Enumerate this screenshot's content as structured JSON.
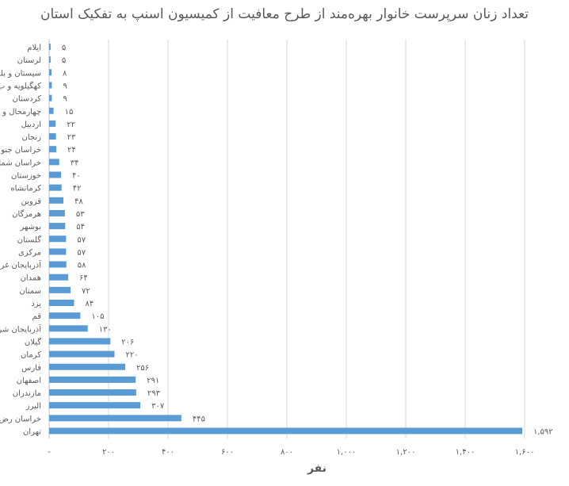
{
  "chart_data": {
    "type": "bar",
    "orientation": "horizontal",
    "title": "تعداد زنان سرپرست خانوار بهره‌مند از طرح معافیت از کمیسیون اسنپ به تفکیک استان",
    "xlabel": "نفر",
    "ylabel": "",
    "xlim": [
      0,
      1600
    ],
    "x_ticks": [
      0,
      200,
      400,
      600,
      800,
      1000,
      1200,
      1400,
      1600
    ],
    "x_tick_labels": [
      "-",
      "۲۰۰",
      "۴۰۰",
      "۶۰۰",
      "۸۰۰",
      "۱,۰۰۰",
      "۱,۲۰۰",
      "۱,۴۰۰",
      "۱,۶۰۰"
    ],
    "grid": "vertical",
    "bar_color": "#5B9BD5",
    "categories": [
      "ایلام",
      "لرستان",
      "سیستان و بلو",
      "کهگیلویه و ب",
      "کردستان",
      "چهارمحال و",
      "اردبیل",
      "زنجان",
      "خراسان جنو",
      "خراسان شما",
      "خوزستان",
      "کرمانشاه",
      "قزوین",
      "هرمزگان",
      "بوشهر",
      "گلستان",
      "مرکزی",
      "آذربایجان غر",
      "همدان",
      "سمنان",
      "یزد",
      "قم",
      "آذربایجان شر",
      "گیلان",
      "کرمان",
      "فارس",
      "اصفهان",
      "مازندران",
      "البرز",
      "خراسان رض",
      "تهران"
    ],
    "values": [
      5,
      5,
      8,
      9,
      9,
      15,
      22,
      23,
      24,
      34,
      40,
      42,
      48,
      53,
      54,
      57,
      57,
      58,
      64,
      72,
      84,
      105,
      130,
      206,
      220,
      256,
      291,
      293,
      307,
      445,
      1592
    ],
    "value_labels": [
      "۵",
      "۵",
      "۸",
      "۹",
      "۹",
      "۱۵",
      "۲۲",
      "۲۳",
      "۲۴",
      "۳۴",
      "۴۰",
      "۴۲",
      "۴۸",
      "۵۳",
      "۵۴",
      "۵۷",
      "۵۷",
      "۵۸",
      "۶۴",
      "۷۲",
      "۸۴",
      "۱۰۵",
      "۱۳۰",
      "۲۰۶",
      "۲۲۰",
      "۲۵۶",
      "۲۹۱",
      "۲۹۳",
      "۳۰۷",
      "۴۴۵",
      "۱,۵۹۲"
    ]
  }
}
